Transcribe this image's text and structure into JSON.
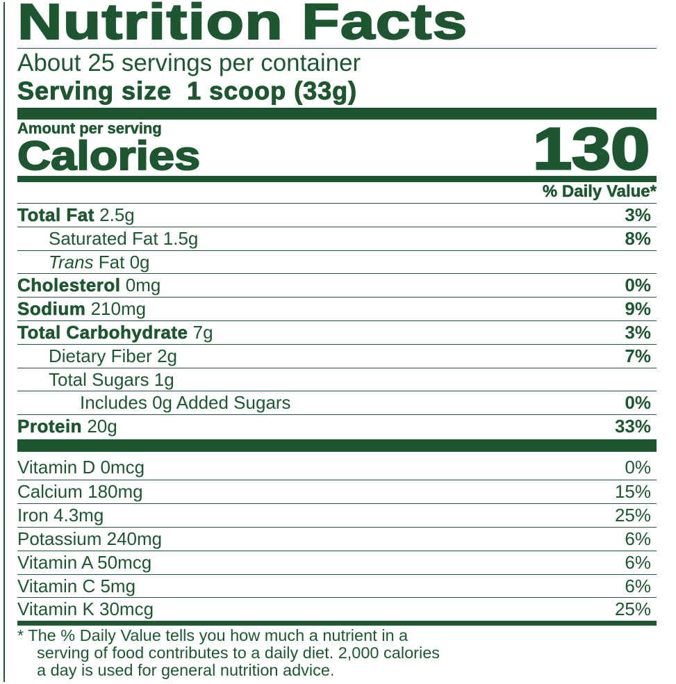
{
  "title": "Nutrition Facts",
  "servings_per_container": "About 25 servings per container",
  "serving_size_label": "Serving size",
  "serving_size_value": "1 scoop (33g)",
  "amount_per_serving": "Amount per serving",
  "calories_label": "Calories",
  "calories_value": "130",
  "daily_value_header": "% Daily Value*",
  "nutrients": [
    {
      "name": "Total Fat",
      "amount": "2.5g",
      "dv": "3%",
      "bold": true,
      "indent": 0
    },
    {
      "name": "Saturated Fat",
      "amount": "1.5g",
      "dv": "8%",
      "bold": false,
      "indent": 1
    },
    {
      "name": "Trans",
      "name_suffix": "Fat",
      "amount": "0g",
      "dv": "",
      "bold": false,
      "indent": 1
    },
    {
      "name": "Cholesterol",
      "amount": "0mg",
      "dv": "0%",
      "bold": true,
      "indent": 0
    },
    {
      "name": "Sodium",
      "amount": "210mg",
      "dv": "9%",
      "bold": true,
      "indent": 0
    },
    {
      "name": "Total Carbohydrate",
      "amount": "7g",
      "dv": "3%",
      "bold": true,
      "indent": 0
    },
    {
      "name": "Dietary Fiber",
      "amount": "2g",
      "dv": "7%",
      "bold": false,
      "indent": 1
    },
    {
      "name": "Total Sugars",
      "amount": "1g",
      "dv": "",
      "bold": false,
      "indent": 1
    },
    {
      "name": "Includes 0g Added Sugars",
      "amount": "",
      "dv": "0%",
      "bold": false,
      "indent": 2
    },
    {
      "name": "Protein",
      "amount": "20g",
      "dv": "33%",
      "bold": true,
      "indent": 0
    }
  ],
  "vitamins": [
    {
      "text": "Vitamin D 0mcg",
      "dv": "0%"
    },
    {
      "text": "Calcium 180mg",
      "dv": "15%"
    },
    {
      "text": "Iron 4.3mg",
      "dv": "25%"
    },
    {
      "text": "Potassium 240mg",
      "dv": "6%"
    },
    {
      "text": "Vitamin A 50mcg",
      "dv": "6%"
    },
    {
      "text": "Vitamin C 5mg",
      "dv": "6%"
    },
    {
      "text": "Vitamin K 30mcg",
      "dv": "25%"
    }
  ],
  "footnote": [
    "* The % Daily Value tells you how much a nutrient in a",
    "serving of food contributes to a daily diet. 2,000 calories",
    "a day is used for general nutrition advice."
  ],
  "colors": {
    "ink": "#1e5631",
    "background": "#ffffff"
  }
}
